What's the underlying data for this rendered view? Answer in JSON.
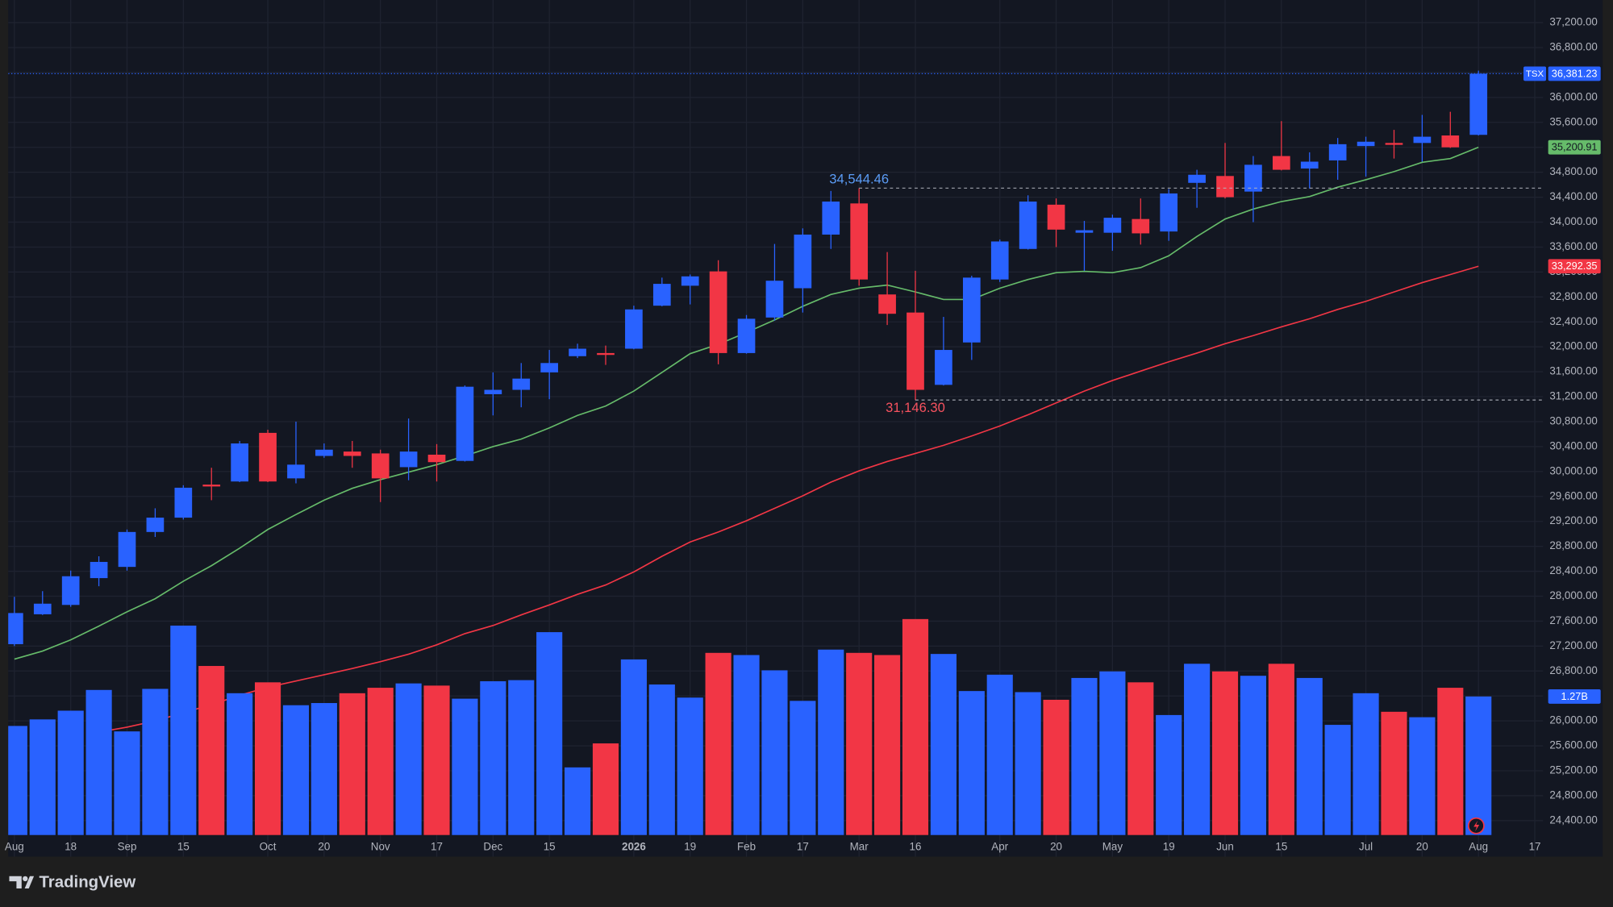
{
  "brand": "TradingView",
  "chart_data": {
    "type": "candlestick",
    "categories": [
      "Aug",
      null,
      "18",
      null,
      "Sep",
      null,
      "15",
      null,
      null,
      "Oct",
      null,
      "20",
      null,
      "Nov",
      null,
      "17",
      null,
      "Dec",
      null,
      "15",
      null,
      null,
      "2026",
      null,
      "19",
      null,
      "Feb",
      null,
      "17",
      null,
      "Mar",
      null,
      "16",
      null,
      null,
      "Apr",
      null,
      "20",
      null,
      "May",
      null,
      "19",
      null,
      "Jun",
      null,
      "15",
      null,
      null,
      "Jul",
      null,
      "20",
      null,
      "Aug",
      null,
      "17"
    ],
    "ylim": [
      23823,
      37563
    ],
    "yticks": [
      {
        "value": 24400,
        "label": "24,400.00"
      },
      {
        "value": 24800,
        "label": "24,800.00"
      },
      {
        "value": 25200,
        "label": "25,200.00"
      },
      {
        "value": 25600,
        "label": "25,600.00"
      },
      {
        "value": 26000,
        "label": "26,000.00"
      },
      {
        "value": 26400,
        "label": "26,400.00"
      },
      {
        "value": 26800,
        "label": "26,800.00"
      },
      {
        "value": 27200,
        "label": "27,200.00"
      },
      {
        "value": 27600,
        "label": "27,600.00"
      },
      {
        "value": 28000,
        "label": "28,000.00"
      },
      {
        "value": 28400,
        "label": "28,400.00"
      },
      {
        "value": 28800,
        "label": "28,800.00"
      },
      {
        "value": 29200,
        "label": "29,200.00"
      },
      {
        "value": 29600,
        "label": "29,600.00"
      },
      {
        "value": 30000,
        "label": "30,000.00"
      },
      {
        "value": 30400,
        "label": "30,400.00"
      },
      {
        "value": 30800,
        "label": "30,800.00"
      },
      {
        "value": 31200,
        "label": "31,200.00"
      },
      {
        "value": 31600,
        "label": "31,600.00"
      },
      {
        "value": 32000,
        "label": "32,000.00"
      },
      {
        "value": 32400,
        "label": "32,400.00"
      },
      {
        "value": 32800,
        "label": "32,800.00"
      },
      {
        "value": 33200,
        "label": "33,200.00"
      },
      {
        "value": 33600,
        "label": "33,600.00"
      },
      {
        "value": 34000,
        "label": "34,000.00"
      },
      {
        "value": 34400,
        "label": "34,400.00"
      },
      {
        "value": 34800,
        "label": "34,800.00"
      },
      {
        "value": 35200,
        "label": "35,200.00"
      },
      {
        "value": 35600,
        "label": "35,600.00"
      },
      {
        "value": 36000,
        "label": "36,000.00"
      },
      {
        "value": 36400,
        "label": "36,400.00"
      },
      {
        "value": 36800,
        "label": "36,800.00"
      },
      {
        "value": 37200,
        "label": "37,200.00"
      }
    ],
    "grid": true,
    "price": {
      "name": "TSX",
      "up_color": "#2962ff",
      "down_color": "#f23645",
      "last_label": "36,381.23",
      "open": [
        27230,
        27710,
        27860,
        28290,
        28470,
        29030,
        29260,
        29790,
        29840,
        30620,
        29890,
        30250,
        30320,
        30290,
        30070,
        30270,
        30170,
        31240,
        31310,
        31590,
        31850,
        31900,
        31970,
        32660,
        32980,
        33210,
        31900,
        32470,
        32940,
        33800,
        34300,
        32840,
        32550,
        31390,
        32070,
        33080,
        33570,
        34280,
        33830,
        33830,
        34050,
        33850,
        34630,
        34740,
        34490,
        35060,
        34860,
        34990,
        35220,
        35270,
        35270,
        35390,
        35400,
        null,
        null
      ],
      "high": [
        27990,
        28080,
        28410,
        28640,
        29070,
        29410,
        29780,
        30060,
        30490,
        30670,
        30800,
        30450,
        30490,
        30350,
        30850,
        30440,
        31380,
        31590,
        31740,
        31950,
        32050,
        32020,
        32660,
        33110,
        33160,
        33390,
        32510,
        33650,
        33900,
        34500,
        34544.46,
        33520,
        33220,
        32480,
        33140,
        33720,
        34430,
        34380,
        34020,
        34120,
        34380,
        34530,
        34840,
        35270,
        35060,
        35620,
        35120,
        35350,
        35370,
        35480,
        35720,
        35770,
        36430,
        null,
        null
      ],
      "low": [
        27200,
        27700,
        27830,
        28160,
        28410,
        28950,
        29230,
        29540,
        29830,
        29830,
        29810,
        30220,
        30060,
        29510,
        29860,
        29840,
        30160,
        30900,
        31030,
        31160,
        31820,
        31710,
        31960,
        32650,
        32680,
        31720,
        31890,
        32420,
        32550,
        33570,
        32980,
        32350,
        31146.3,
        31380,
        31790,
        33040,
        33560,
        33600,
        33220,
        33540,
        33640,
        33700,
        34230,
        34380,
        34000,
        34830,
        34540,
        34680,
        34730,
        35020,
        34970,
        35190,
        35390,
        null,
        null
      ],
      "close": [
        27730,
        27880,
        28320,
        28550,
        29030,
        29260,
        29740,
        29760,
        30450,
        29840,
        30110,
        30350,
        30250,
        29890,
        30320,
        30150,
        31360,
        31310,
        31490,
        31740,
        31970,
        31870,
        32600,
        33010,
        33130,
        31900,
        32450,
        33060,
        33800,
        34330,
        33080,
        32530,
        31310,
        31950,
        33110,
        33690,
        34330,
        33880,
        33870,
        34070,
        33820,
        34460,
        34760,
        34400,
        34920,
        34840,
        34970,
        35250,
        35290,
        35240,
        35370,
        35200,
        36381.23,
        null,
        null
      ]
    },
    "lines": [
      {
        "color": "#66bb6a",
        "last_label": "35,200.91",
        "values": [
          26990,
          27120,
          27300,
          27520,
          27750,
          27960,
          28240,
          28490,
          28770,
          29070,
          29310,
          29540,
          29730,
          29870,
          29990,
          30110,
          30250,
          30400,
          30520,
          30700,
          30900,
          31050,
          31290,
          31590,
          31890,
          32040,
          32230,
          32430,
          32650,
          32840,
          32940,
          32990,
          32880,
          32760,
          32760,
          32940,
          33080,
          33190,
          33210,
          33190,
          33270,
          33460,
          33770,
          34050,
          34210,
          34330,
          34410,
          34560,
          34680,
          34810,
          34960,
          35020,
          35200.91,
          null,
          null
        ]
      },
      {
        "color": "#f23645",
        "last_label": "33,292.35",
        "values": [
          null,
          null,
          null,
          25820,
          25900,
          26000,
          26130,
          26260,
          26410,
          26540,
          26640,
          26740,
          26840,
          26950,
          27070,
          27220,
          27400,
          27530,
          27700,
          27860,
          28030,
          28180,
          28390,
          28640,
          28870,
          29030,
          29210,
          29410,
          29610,
          29830,
          30010,
          30160,
          30290,
          30420,
          30570,
          30730,
          30910,
          31100,
          31290,
          31460,
          31610,
          31760,
          31900,
          32050,
          32180,
          32320,
          32450,
          32600,
          32730,
          32880,
          33030,
          33160,
          33292.35,
          null,
          null
        ]
      }
    ],
    "volume": {
      "last_label": "1.27B",
      "values": [
        1,
        1.06,
        1.14,
        1.33,
        0.95,
        1.34,
        1.92,
        1.55,
        1.3,
        1.4,
        1.19,
        1.21,
        1.3,
        1.35,
        1.39,
        1.37,
        1.25,
        1.41,
        1.42,
        1.86,
        0.62,
        0.84,
        1.61,
        1.38,
        1.26,
        1.67,
        1.65,
        1.51,
        1.23,
        1.7,
        1.67,
        1.65,
        1.98,
        1.66,
        1.32,
        1.47,
        1.31,
        1.24,
        1.44,
        1.5,
        1.4,
        1.1,
        1.57,
        1.5,
        1.46,
        1.57,
        1.44,
        1.01,
        1.3,
        1.13,
        1.08,
        1.35,
        1.27,
        null,
        null
      ]
    },
    "annotations": [
      {
        "value": 34544.46,
        "label": "34,544.46",
        "color": "#5b9cf6"
      },
      {
        "value": 31146.3,
        "label": "31,146.30",
        "color": "#f7525f"
      }
    ]
  }
}
